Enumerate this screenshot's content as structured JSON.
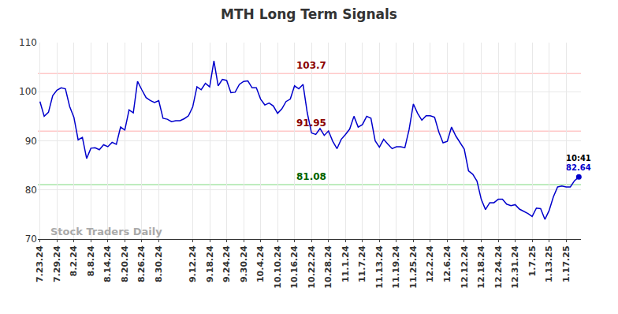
{
  "chart_data": {
    "type": "line",
    "title": "MTH Long Term Signals",
    "watermark": "Stock Traders Daily",
    "color": "#0000cc",
    "grid": true,
    "ylim": [
      70,
      110
    ],
    "yticks": [
      70,
      80,
      90,
      100,
      110
    ],
    "categories": [
      "7.23.24",
      null,
      null,
      null,
      "7.29.24",
      null,
      null,
      null,
      "8.2.24",
      null,
      null,
      null,
      "8.8.24",
      null,
      null,
      null,
      "8.14.24",
      null,
      null,
      null,
      "8.20.24",
      null,
      null,
      null,
      "8.26.24",
      null,
      null,
      null,
      "8.30.24",
      null,
      null,
      null,
      null,
      null,
      null,
      null,
      "9.12.24",
      null,
      null,
      null,
      "9.18.24",
      null,
      null,
      null,
      "9.24.24",
      null,
      null,
      null,
      "9.30.24",
      null,
      null,
      null,
      "10.4.24",
      null,
      null,
      null,
      "10.10.24",
      null,
      null,
      null,
      "10.16.24",
      null,
      null,
      null,
      "10.22.24",
      null,
      null,
      null,
      "10.28.24",
      null,
      null,
      null,
      "11.1.24",
      null,
      null,
      null,
      "11.7.24",
      null,
      null,
      null,
      "11.13.24",
      null,
      null,
      null,
      "11.19.24",
      null,
      null,
      null,
      "11.25.24",
      null,
      null,
      null,
      "12.2.24",
      null,
      null,
      null,
      "12.6.24",
      null,
      null,
      null,
      "12.12.24",
      null,
      null,
      null,
      "12.18.24",
      null,
      null,
      null,
      "12.24.24",
      null,
      null,
      null,
      "12.31.24",
      null,
      null,
      null,
      "1.7.25",
      null,
      null,
      null,
      "1.13.25",
      null,
      null,
      null,
      "1.17.25",
      null,
      null,
      null
    ],
    "values": [
      98,
      95,
      95.8,
      99.2,
      100.3,
      100.8,
      100.6,
      97,
      94.8,
      90.2,
      90.7,
      86.4,
      88.5,
      88.6,
      88.2,
      89.2,
      88.8,
      89.7,
      89.3,
      92.8,
      92.2,
      96.3,
      95.7,
      102.1,
      100.4,
      98.8,
      98.2,
      97.8,
      98.2,
      94.6,
      94.4,
      93.9,
      94.1,
      94.1,
      94.5,
      95.1,
      96.9,
      101,
      100.4,
      101.7,
      101,
      106.3,
      101.2,
      102.5,
      102.3,
      99.8,
      99.9,
      101.5,
      102.1,
      102.2,
      100.8,
      100.8,
      98.5,
      97.3,
      97.7,
      97.1,
      95.6,
      96.5,
      98,
      98.5,
      101.2,
      100.6,
      101.5,
      95.7,
      91.6,
      91.3,
      92.5,
      91.1,
      92,
      89.9,
      88.4,
      90.3,
      91.3,
      92.4,
      95,
      92.8,
      93.3,
      95,
      94.6,
      90,
      88.7,
      90.3,
      89.3,
      88.4,
      88.8,
      88.8,
      88.6,
      92.3,
      97.5,
      95.6,
      94.2,
      95.1,
      95.1,
      94.8,
      91.8,
      89.6,
      89.9,
      92.8,
      91,
      89.7,
      88.3,
      83.9,
      83.2,
      81.8,
      78.1,
      76,
      77.4,
      77.4,
      78.1,
      78.1,
      77.1,
      76.8,
      77,
      76.1,
      75.7,
      75.2,
      74.6,
      76.3,
      76.2,
      74,
      75.8,
      78.6,
      80.6,
      80.8,
      80.6,
      80.6,
      81.9,
      82.64
    ],
    "last_point_time": "10:41",
    "reference_lines": [
      {
        "value": 103.7,
        "label": "103.7",
        "color": "#ffc8c8",
        "label_color": "#8b0000"
      },
      {
        "value": 91.95,
        "label": "91.95",
        "color": "#ffc8c8",
        "label_color": "#8b0000"
      },
      {
        "value": 81.08,
        "label": "81.08",
        "color": "#a8e6a8",
        "label_color": "#006400"
      }
    ]
  }
}
